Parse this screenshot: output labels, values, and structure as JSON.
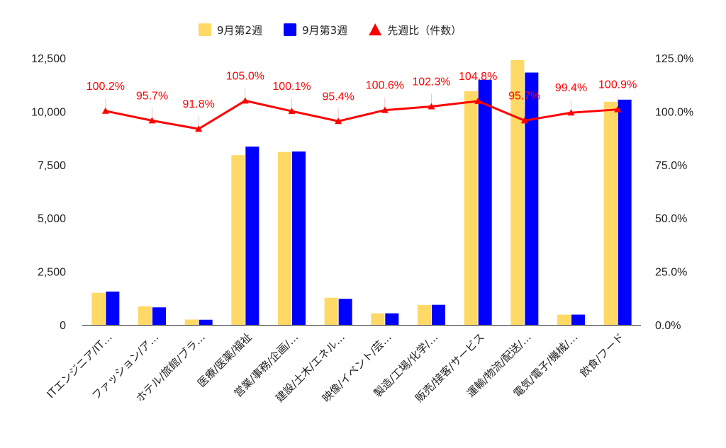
{
  "chart_data": {
    "type": "bar",
    "categories": [
      "ITエンジニア/IT…",
      "ファッション/ア…",
      "ホテル/旅館/ブラ…",
      "医療/医薬/福祉",
      "営業/事務/企画/…",
      "建設/土木/エネル…",
      "映像/イベント/芸…",
      "製造/工場/化学/…",
      "販売/接客/サービス",
      "運輸/物流/配送/…",
      "電気/電子/機械/…",
      "飲食/フード"
    ],
    "series": [
      {
        "name": "9月第2週",
        "type": "bar",
        "axis": "left",
        "color": "#ffd966",
        "values": [
          1500,
          870,
          250,
          7950,
          8100,
          1270,
          540,
          930,
          10950,
          12400,
          480,
          10450
        ]
      },
      {
        "name": "9月第3週",
        "type": "bar",
        "axis": "left",
        "color": "#0000ff",
        "values": [
          1560,
          820,
          240,
          8350,
          8120,
          1220,
          540,
          940,
          11480,
          11820,
          480,
          10550
        ]
      },
      {
        "name": "先週比（件数）",
        "type": "line",
        "axis": "right",
        "color": "#ff0000",
        "values": [
          100.2,
          95.7,
          91.8,
          105.0,
          100.1,
          95.4,
          100.6,
          102.3,
          104.8,
          95.7,
          99.4,
          100.9
        ],
        "labels": [
          "100.2%",
          "95.7%",
          "91.8%",
          "105.0%",
          "100.1%",
          "95.4%",
          "100.6%",
          "102.3%",
          "104.8%",
          "95.7%",
          "99.4%",
          "100.9%"
        ]
      }
    ],
    "left_axis": {
      "min": 0,
      "max": 12500,
      "ticks": [
        0,
        2500,
        5000,
        7500,
        10000,
        12500
      ],
      "tick_labels": [
        "0",
        "2,500",
        "5,000",
        "7,500",
        "10,000",
        "12,500"
      ]
    },
    "right_axis": {
      "min": 0,
      "max": 125,
      "ticks": [
        0,
        25,
        50,
        75,
        100,
        125
      ],
      "tick_labels": [
        "0.0%",
        "25.0%",
        "50.0%",
        "75.0%",
        "100.0%",
        "125.0%"
      ]
    },
    "legend_position": "top-center",
    "grid": false,
    "title": "",
    "xlabel": "",
    "ylabel": ""
  }
}
